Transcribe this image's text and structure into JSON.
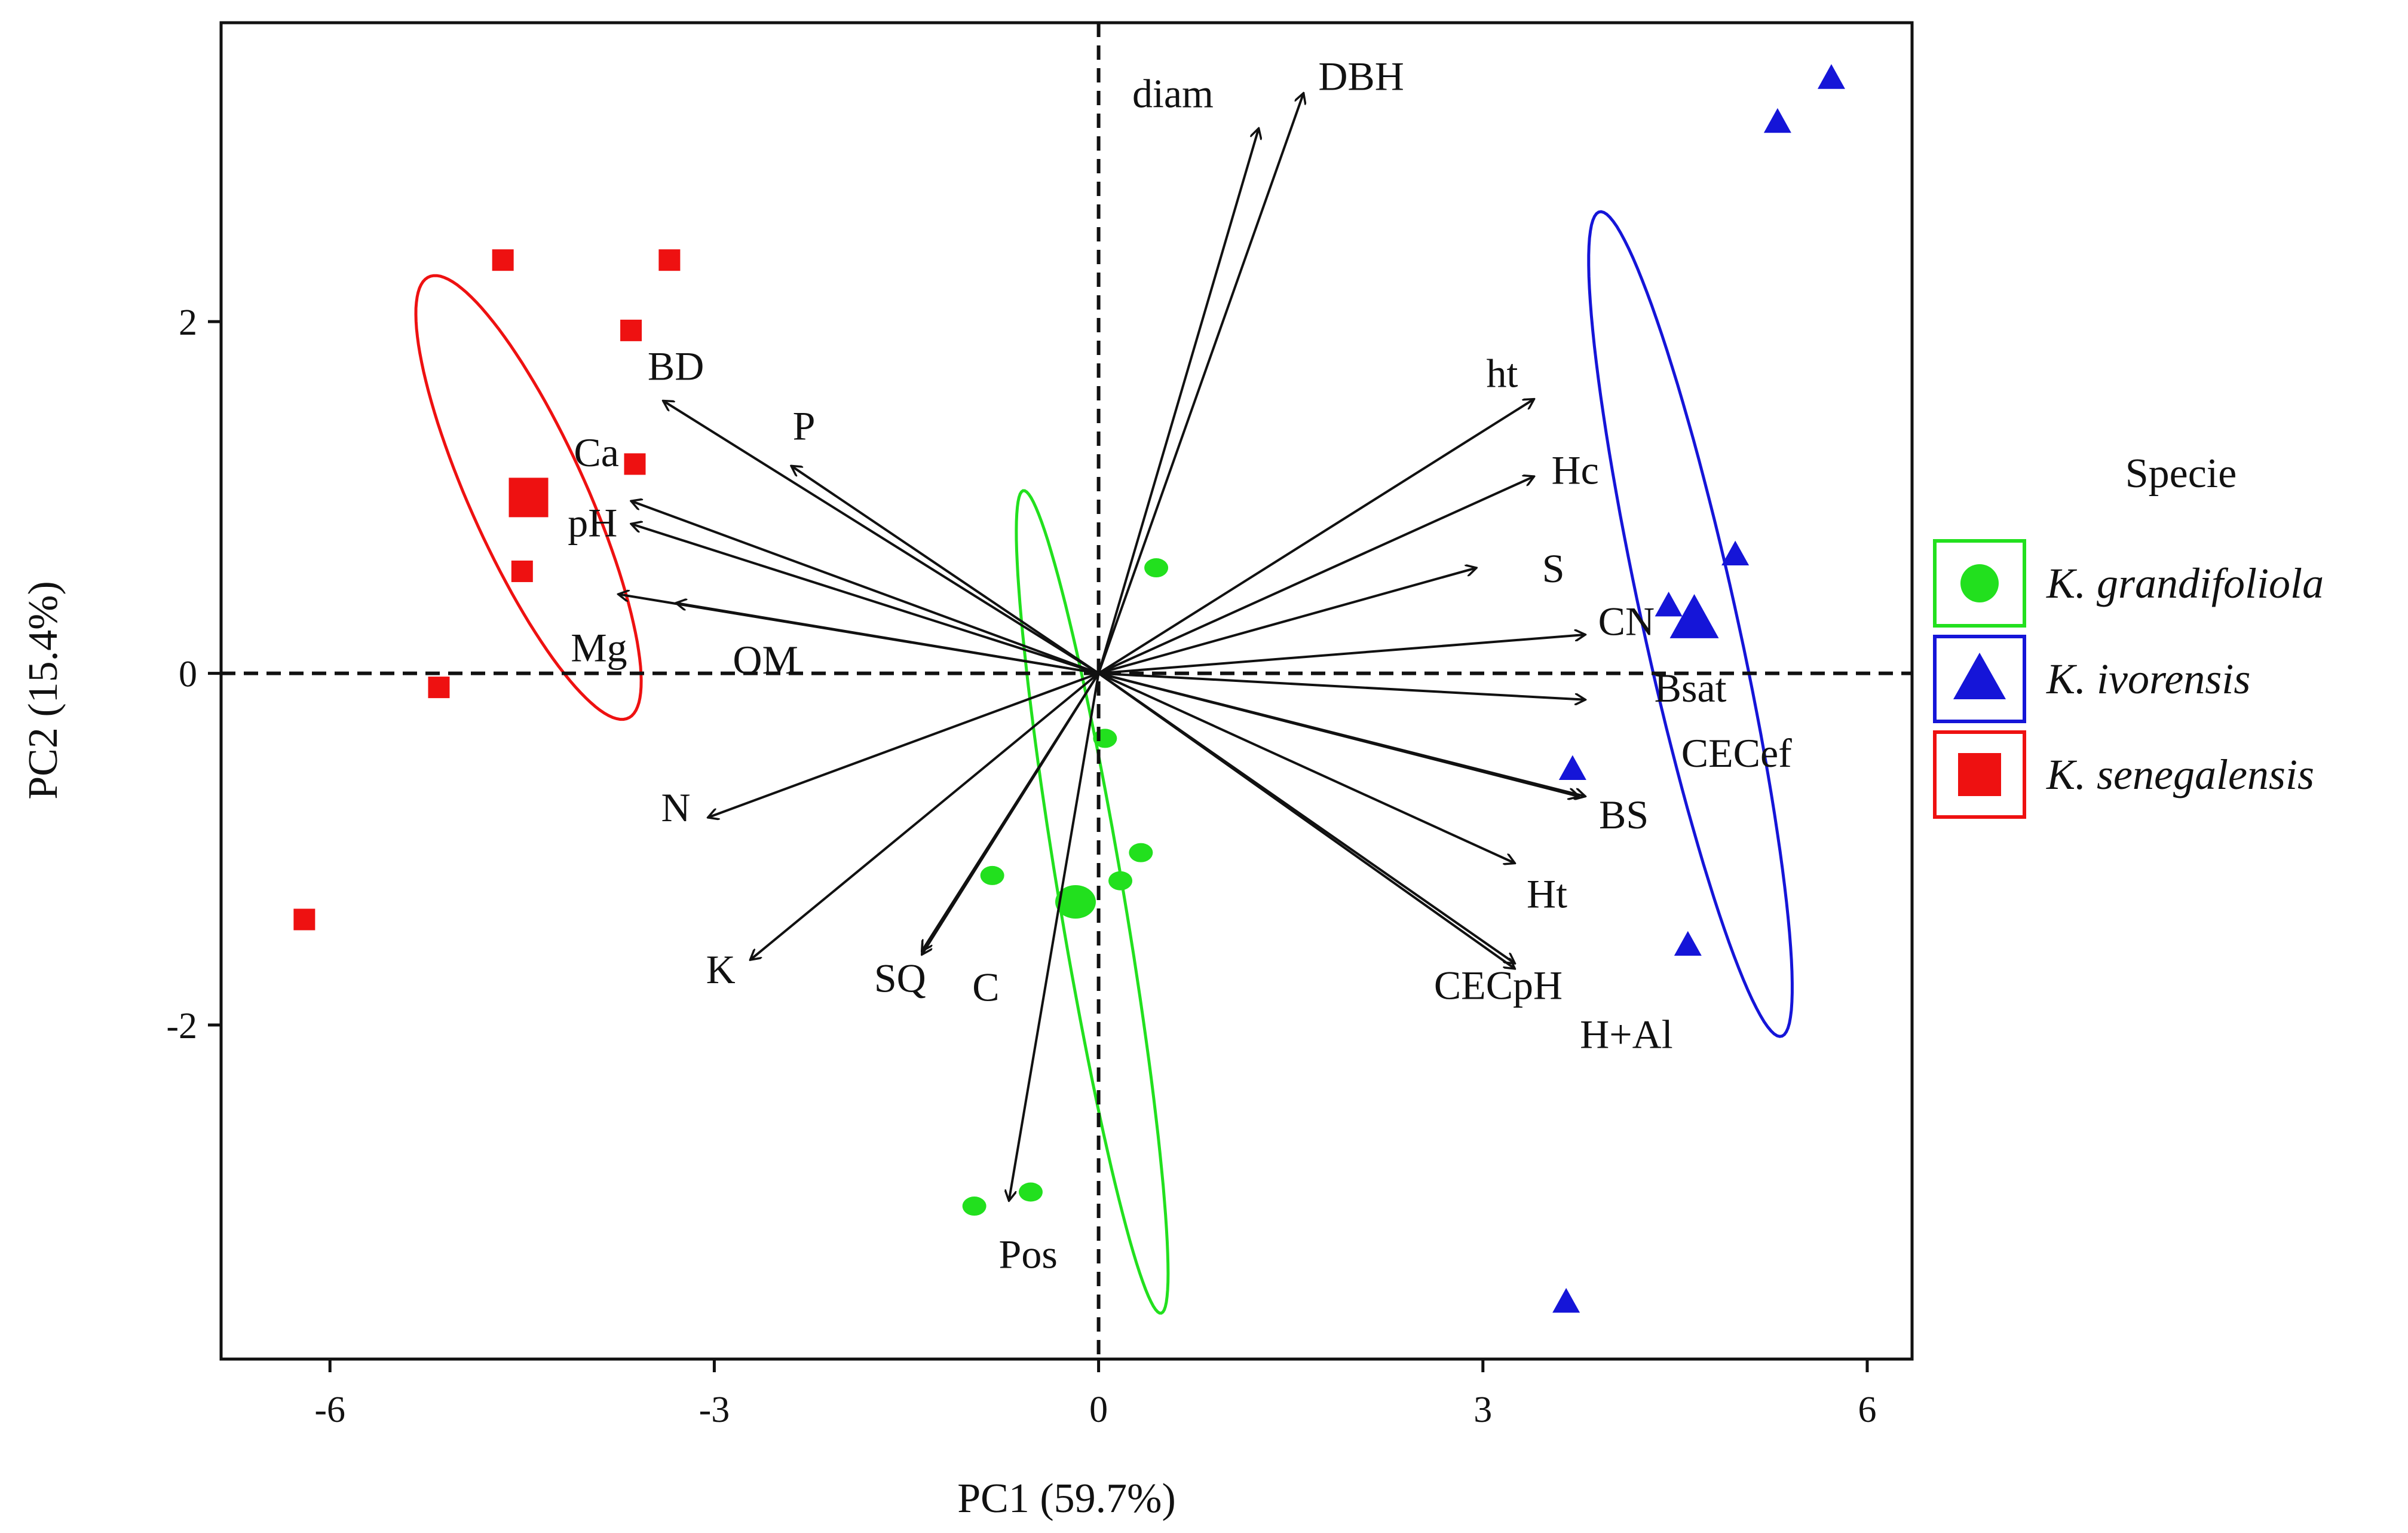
{
  "chart_data": {
    "type": "scatter",
    "subtype": "pca-biplot",
    "title": "",
    "xlabel": "PC1 (59.7%)",
    "ylabel": "PC2 (15.4%)",
    "xlim": [
      -6.85,
      6.35
    ],
    "ylim": [
      -3.9,
      3.7
    ],
    "xticks": [
      -6,
      -3,
      0,
      3,
      6
    ],
    "xtick_labels": [
      "-6",
      "-3",
      "0",
      "3",
      "6"
    ],
    "yticks": [
      -2,
      0,
      2
    ],
    "ytick_labels": [
      "-2",
      "0",
      "2"
    ],
    "zero_lines": true,
    "grid": false,
    "legend": {
      "title": "Specie",
      "position": "right",
      "entries": [
        {
          "label": "K. grandifoliola",
          "color": "#22e01e",
          "marker": "circle"
        },
        {
          "label": "K. ivorensis",
          "color": "#1515d8",
          "marker": "triangle"
        },
        {
          "label": "K. senegalensis",
          "color": "#ee1111",
          "marker": "square"
        }
      ]
    },
    "series": [
      {
        "name": "K. grandifoliola",
        "color": "#22e01e",
        "marker": "circle",
        "points": [
          [
            0.45,
            0.6
          ],
          [
            0.05,
            -0.37
          ],
          [
            0.33,
            -1.02
          ],
          [
            0.17,
            -1.18
          ],
          [
            -0.83,
            -1.15
          ],
          [
            -0.53,
            -2.95
          ],
          [
            -0.97,
            -3.03
          ]
        ],
        "centroid": [
          -0.18,
          -1.3
        ],
        "ellipse": {
          "center": [
            -0.05,
            -1.3
          ],
          "rx": 2.4,
          "ry": 0.25,
          "angle_deg": -77
        }
      },
      {
        "name": "K. ivorensis",
        "color": "#1515d8",
        "marker": "triangle",
        "points": [
          [
            5.72,
            3.38
          ],
          [
            5.3,
            3.13
          ],
          [
            4.97,
            0.67
          ],
          [
            4.45,
            0.38
          ],
          [
            3.7,
            -0.55
          ],
          [
            4.6,
            -1.55
          ],
          [
            3.65,
            -3.58
          ]
        ],
        "centroid": [
          4.65,
          0.3
        ],
        "ellipse": {
          "center": [
            4.62,
            0.28
          ],
          "rx": 2.45,
          "ry": 0.36,
          "angle_deg": -73
        }
      },
      {
        "name": "K. senegalensis",
        "color": "#ee1111",
        "marker": "square",
        "points": [
          [
            -4.65,
            2.35
          ],
          [
            -3.35,
            2.35
          ],
          [
            -3.65,
            1.95
          ],
          [
            -3.62,
            1.19
          ],
          [
            -4.5,
            0.58
          ],
          [
            -5.15,
            -0.08
          ],
          [
            -6.2,
            -1.4
          ]
        ],
        "centroid": [
          -4.45,
          1.0
        ],
        "ellipse": {
          "center": [
            -4.45,
            1.0
          ],
          "rx": 1.48,
          "ry": 0.42,
          "angle_deg": -57
        }
      }
    ],
    "vectors": [
      {
        "name": "diam",
        "x": 1.25,
        "y": 3.1,
        "label_x": 0.58,
        "label_y": 3.3
      },
      {
        "name": "DBH",
        "x": 1.6,
        "y": 3.3,
        "label_x": 2.05,
        "label_y": 3.4
      },
      {
        "name": "ht",
        "x": 3.4,
        "y": 1.56,
        "label_x": 3.15,
        "label_y": 1.71
      },
      {
        "name": "Hc",
        "x": 3.4,
        "y": 1.12,
        "label_x": 3.72,
        "label_y": 1.16
      },
      {
        "name": "S",
        "x": 2.95,
        "y": 0.6,
        "label_x": 3.55,
        "label_y": 0.6
      },
      {
        "name": "CN",
        "x": 3.8,
        "y": 0.22,
        "label_x": 4.12,
        "label_y": 0.3
      },
      {
        "name": "Bsat",
        "x": 3.8,
        "y": -0.15,
        "label_x": 4.62,
        "label_y": -0.08
      },
      {
        "name": "CECef",
        "x": 3.8,
        "y": -0.7,
        "label_x": 4.98,
        "label_y": -0.45
      },
      {
        "name": "BS",
        "x": 3.75,
        "y": -0.7,
        "label_x": 4.1,
        "label_y": -0.8
      },
      {
        "name": "Ht",
        "x": 3.25,
        "y": -1.08,
        "label_x": 3.5,
        "label_y": -1.25
      },
      {
        "name": "CECpH",
        "x": 3.25,
        "y": -1.65,
        "label_x": 3.12,
        "label_y": -1.77
      },
      {
        "name": "H+Al",
        "x": 3.25,
        "y": -1.68,
        "label_x": 4.12,
        "label_y": -2.05
      },
      {
        "name": "Pos",
        "x": -0.7,
        "y": -3.0,
        "label_x": -0.55,
        "label_y": -3.3
      },
      {
        "name": "C",
        "x": -1.38,
        "y": -1.58,
        "label_x": -0.88,
        "label_y": -1.78
      },
      {
        "name": "SQ",
        "x": -1.38,
        "y": -1.6,
        "label_x": -1.55,
        "label_y": -1.73
      },
      {
        "name": "K",
        "x": -2.72,
        "y": -1.63,
        "label_x": -2.95,
        "label_y": -1.68
      },
      {
        "name": "N",
        "x": -3.05,
        "y": -0.82,
        "label_x": -3.3,
        "label_y": -0.76
      },
      {
        "name": "Mg",
        "x": -3.75,
        "y": 0.45,
        "label_x": -3.9,
        "label_y": 0.15
      },
      {
        "name": "OM",
        "x": -3.3,
        "y": 0.4,
        "label_x": -2.6,
        "label_y": 0.08
      },
      {
        "name": "pH",
        "x": -3.65,
        "y": 0.85,
        "label_x": -3.95,
        "label_y": 0.86
      },
      {
        "name": "Ca",
        "x": -3.65,
        "y": 0.98,
        "label_x": -3.92,
        "label_y": 1.26
      },
      {
        "name": "P",
        "x": -2.4,
        "y": 1.18,
        "label_x": -2.3,
        "label_y": 1.41
      },
      {
        "name": "BD",
        "x": -3.4,
        "y": 1.55,
        "label_x": -3.3,
        "label_y": 1.75
      }
    ]
  }
}
